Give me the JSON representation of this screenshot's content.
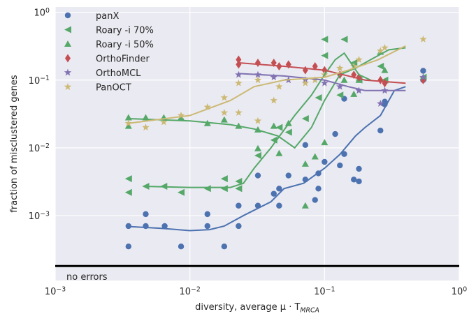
{
  "chart_data": {
    "type": "scatter",
    "x_label": "diversity, average μ · T_MRCA",
    "y_label": "fraction of misclustered genes",
    "xscale": "log",
    "yscale": "log",
    "grid": true,
    "legend": "upper left",
    "xlim": [
      0.001,
      1
    ],
    "ylim": [
      0.00011,
      1.2
    ],
    "xticks": [
      {
        "value": 0.001,
        "label": "10^−3"
      },
      {
        "value": 0.01,
        "label": "10^−2"
      },
      {
        "value": 0.1,
        "label": "10^−1"
      },
      {
        "value": 1,
        "label": "10^0"
      }
    ],
    "yticks": [
      {
        "value": 0.001,
        "label": "10^−3"
      },
      {
        "value": 0.01,
        "label": "10^−2"
      },
      {
        "value": 0.1,
        "label": "10^−1"
      },
      {
        "value": 1,
        "label": "10^0"
      }
    ],
    "baseline": {
      "value": 0.00018,
      "label": "no errors"
    },
    "series": [
      {
        "name": "panX",
        "color": "#4c72b0",
        "marker": "circle",
        "x": [
          0.0035,
          0.0035,
          0.0047,
          0.0047,
          0.0065,
          0.0086,
          0.0135,
          0.0135,
          0.018,
          0.023,
          0.023,
          0.032,
          0.032,
          0.042,
          0.046,
          0.046,
          0.054,
          0.072,
          0.072,
          0.085,
          0.09,
          0.09,
          0.1,
          0.12,
          0.13,
          0.14,
          0.165,
          0.18,
          0.18,
          0.14,
          0.26,
          0.28,
          0.28,
          0.54,
          0.54
        ],
        "values": [
          0.0007,
          0.00035,
          0.00105,
          0.0007,
          0.0007,
          0.00035,
          0.00105,
          0.0007,
          0.00035,
          0.0014,
          0.0007,
          0.0039,
          0.0014,
          0.0021,
          0.0025,
          0.0014,
          0.0039,
          0.011,
          0.0034,
          0.0017,
          0.0025,
          0.0042,
          0.0062,
          0.016,
          0.0055,
          0.0081,
          0.0034,
          0.0049,
          0.0032,
          0.053,
          0.018,
          0.044,
          0.048,
          0.137,
          0.1
        ],
        "line_x": [
          0.0035,
          0.006,
          0.01,
          0.014,
          0.018,
          0.025,
          0.04,
          0.05,
          0.07,
          0.1,
          0.13,
          0.17,
          0.2,
          0.26,
          0.33,
          0.4
        ],
        "line_values": [
          0.00069,
          0.00065,
          0.0006,
          0.00062,
          0.0007,
          0.001,
          0.0016,
          0.0025,
          0.003,
          0.005,
          0.008,
          0.015,
          0.02,
          0.03,
          0.07,
          0.08
        ]
      },
      {
        "name": "Roary -i 70%",
        "color": "#55a868",
        "marker": "triangle-left",
        "x": [
          0.0035,
          0.0035,
          0.0047,
          0.0064,
          0.0086,
          0.0135,
          0.018,
          0.018,
          0.023,
          0.023,
          0.032,
          0.042,
          0.046,
          0.054,
          0.072,
          0.09,
          0.1,
          0.1,
          0.13,
          0.14,
          0.165,
          0.18,
          0.26,
          0.28,
          0.54
        ],
        "values": [
          0.0035,
          0.0022,
          0.0027,
          0.0027,
          0.0022,
          0.0025,
          0.0035,
          0.0025,
          0.0032,
          0.0025,
          0.0077,
          0.013,
          0.02,
          0.017,
          0.027,
          0.055,
          0.23,
          0.4,
          0.06,
          0.4,
          0.18,
          0.1,
          0.16,
          0.1,
          0.11
        ],
        "line_x": [
          0.0045,
          0.01,
          0.02,
          0.025,
          0.03,
          0.04,
          0.06,
          0.08,
          0.1,
          0.12,
          0.14,
          0.18,
          0.22
        ],
        "line_values": [
          0.0027,
          0.0026,
          0.0026,
          0.003,
          0.005,
          0.01,
          0.03,
          0.06,
          0.12,
          0.2,
          0.25,
          0.12,
          0.1
        ]
      },
      {
        "name": "Roary -i 50%",
        "color": "#55a868",
        "marker": "triangle-up",
        "x": [
          0.0035,
          0.0035,
          0.0047,
          0.0064,
          0.0086,
          0.0135,
          0.018,
          0.023,
          0.032,
          0.032,
          0.042,
          0.046,
          0.054,
          0.072,
          0.072,
          0.085,
          0.1,
          0.14,
          0.165,
          0.18,
          0.26,
          0.28,
          0.54
        ],
        "values": [
          0.028,
          0.021,
          0.028,
          0.028,
          0.028,
          0.023,
          0.026,
          0.021,
          0.0185,
          0.0098,
          0.021,
          0.0083,
          0.023,
          0.0014,
          0.0058,
          0.0074,
          0.012,
          0.1,
          0.062,
          0.1,
          0.26,
          0.14,
          0.11
        ],
        "line_x": [
          0.0035,
          0.01,
          0.02,
          0.03,
          0.045,
          0.06,
          0.08,
          0.1,
          0.13,
          0.17,
          0.22,
          0.3,
          0.4
        ],
        "line_values": [
          0.027,
          0.025,
          0.022,
          0.019,
          0.015,
          0.01,
          0.02,
          0.05,
          0.12,
          0.15,
          0.2,
          0.28,
          0.3
        ]
      },
      {
        "name": "OrthoFinder",
        "color": "#c44e52",
        "marker": "diamond",
        "x": [
          0.023,
          0.023,
          0.032,
          0.042,
          0.046,
          0.054,
          0.072,
          0.085,
          0.1,
          0.13,
          0.165,
          0.18,
          0.26,
          0.28,
          0.54
        ],
        "values": [
          0.2,
          0.17,
          0.18,
          0.18,
          0.16,
          0.17,
          0.14,
          0.16,
          0.14,
          0.12,
          0.12,
          0.11,
          0.1,
          0.09,
          0.1
        ],
        "line_x": [
          0.023,
          0.05,
          0.1,
          0.2,
          0.4
        ],
        "line_values": [
          0.18,
          0.16,
          0.14,
          0.1,
          0.09
        ]
      },
      {
        "name": "OrthoMCL",
        "color": "#8172b2",
        "marker": "star",
        "x": [
          0.023,
          0.032,
          0.042,
          0.054,
          0.072,
          0.1,
          0.13,
          0.18,
          0.26,
          0.28,
          0.54
        ],
        "values": [
          0.12,
          0.12,
          0.11,
          0.1,
          0.1,
          0.09,
          0.08,
          0.07,
          0.045,
          0.07,
          0.11
        ],
        "line_x": [
          0.023,
          0.05,
          0.1,
          0.15,
          0.2,
          0.4
        ],
        "line_values": [
          0.125,
          0.115,
          0.1,
          0.08,
          0.07,
          0.07
        ]
      },
      {
        "name": "PanOCT",
        "color": "#ccb974",
        "marker": "star",
        "x": [
          0.0035,
          0.0047,
          0.0064,
          0.0086,
          0.0135,
          0.018,
          0.018,
          0.023,
          0.023,
          0.032,
          0.032,
          0.042,
          0.046,
          0.072,
          0.085,
          0.1,
          0.13,
          0.165,
          0.18,
          0.26,
          0.28,
          0.54
        ],
        "values": [
          0.023,
          0.02,
          0.024,
          0.03,
          0.04,
          0.055,
          0.033,
          0.09,
          0.033,
          0.1,
          0.025,
          0.05,
          0.08,
          0.09,
          0.1,
          0.12,
          0.15,
          0.16,
          0.2,
          0.27,
          0.3,
          0.4
        ],
        "line_x": [
          0.0035,
          0.01,
          0.02,
          0.03,
          0.05,
          0.1,
          0.15,
          0.25,
          0.4
        ],
        "line_values": [
          0.023,
          0.03,
          0.05,
          0.08,
          0.1,
          0.11,
          0.14,
          0.2,
          0.32
        ]
      }
    ]
  }
}
